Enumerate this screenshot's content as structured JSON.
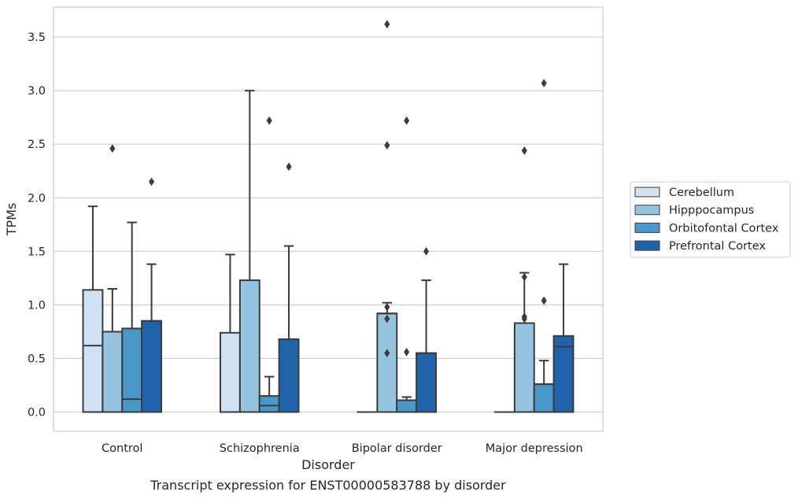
{
  "chart_data": {
    "type": "box",
    "title": "",
    "caption": "Transcript expression for ENST00000583788 by disorder",
    "xlabel": "Disorder",
    "ylabel": "TPMs",
    "ylim": [
      -0.18,
      3.78
    ],
    "yticks": [
      "0.0",
      "0.5",
      "1.0",
      "1.5",
      "2.0",
      "2.5",
      "3.0",
      "3.5"
    ],
    "grid": "horizontal",
    "legend_position": "right-outside",
    "categories": [
      "Control",
      "Schizophrenia",
      "Bipolar disorder",
      "Major depression"
    ],
    "series": [
      {
        "name": "Cerebellum",
        "color": "#d0e1f2",
        "boxes": [
          {
            "q1": 0.0,
            "median": 0.62,
            "q3": 1.14,
            "whisker_low": 0.0,
            "whisker_high": 1.92,
            "outliers": []
          },
          {
            "q1": 0.0,
            "median": 0.0,
            "q3": 0.74,
            "whisker_low": 0.0,
            "whisker_high": 1.47,
            "outliers": []
          },
          {
            "q1": 0.0,
            "median": 0.0,
            "q3": 0.0,
            "whisker_low": 0.0,
            "whisker_high": 0.0,
            "outliers": []
          },
          {
            "q1": 0.0,
            "median": 0.0,
            "q3": 0.0,
            "whisker_low": 0.0,
            "whisker_high": 0.0,
            "outliers": []
          }
        ]
      },
      {
        "name": "Hipppocampus",
        "color": "#94c4df",
        "boxes": [
          {
            "q1": 0.0,
            "median": 0.0,
            "q3": 0.75,
            "whisker_low": 0.0,
            "whisker_high": 1.15,
            "outliers": [
              2.46
            ]
          },
          {
            "q1": 0.0,
            "median": 0.0,
            "q3": 1.23,
            "whisker_low": 0.0,
            "whisker_high": 3.0,
            "outliers": []
          },
          {
            "q1": 0.0,
            "median": 0.92,
            "q3": 0.92,
            "whisker_low": 0.0,
            "whisker_high": 1.02,
            "outliers": [
              0.55,
              0.87,
              0.98,
              2.49,
              3.62
            ]
          },
          {
            "q1": 0.0,
            "median": 0.0,
            "q3": 0.83,
            "whisker_low": 0.0,
            "whisker_high": 1.3,
            "outliers": [
              0.87,
              0.89,
              1.26,
              2.44
            ]
          }
        ]
      },
      {
        "name": "Orbitofontal Cortex",
        "color": "#4a98c9",
        "boxes": [
          {
            "q1": 0.0,
            "median": 0.12,
            "q3": 0.78,
            "whisker_low": 0.0,
            "whisker_high": 1.77,
            "outliers": []
          },
          {
            "q1": 0.0,
            "median": 0.06,
            "q3": 0.15,
            "whisker_low": 0.0,
            "whisker_high": 0.33,
            "outliers": [
              2.72
            ]
          },
          {
            "q1": 0.0,
            "median": 0.11,
            "q3": 0.11,
            "whisker_low": 0.0,
            "whisker_high": 0.14,
            "outliers": [
              0.56,
              2.72
            ]
          },
          {
            "q1": 0.0,
            "median": 0.26,
            "q3": 0.26,
            "whisker_low": 0.0,
            "whisker_high": 0.48,
            "outliers": [
              1.04,
              3.07
            ]
          }
        ]
      },
      {
        "name": "Prefrontal Cortex",
        "color": "#2163aa",
        "boxes": [
          {
            "q1": 0.0,
            "median": 0.85,
            "q3": 0.85,
            "whisker_low": 0.0,
            "whisker_high": 1.38,
            "outliers": [
              2.15
            ]
          },
          {
            "q1": 0.0,
            "median": 0.68,
            "q3": 0.68,
            "whisker_low": 0.0,
            "whisker_high": 1.55,
            "outliers": [
              2.29
            ]
          },
          {
            "q1": 0.0,
            "median": 0.55,
            "q3": 0.55,
            "whisker_low": 0.0,
            "whisker_high": 1.23,
            "outliers": [
              1.5
            ]
          },
          {
            "q1": 0.0,
            "median": 0.61,
            "q3": 0.71,
            "whisker_low": 0.0,
            "whisker_high": 1.38,
            "outliers": []
          }
        ]
      }
    ]
  }
}
